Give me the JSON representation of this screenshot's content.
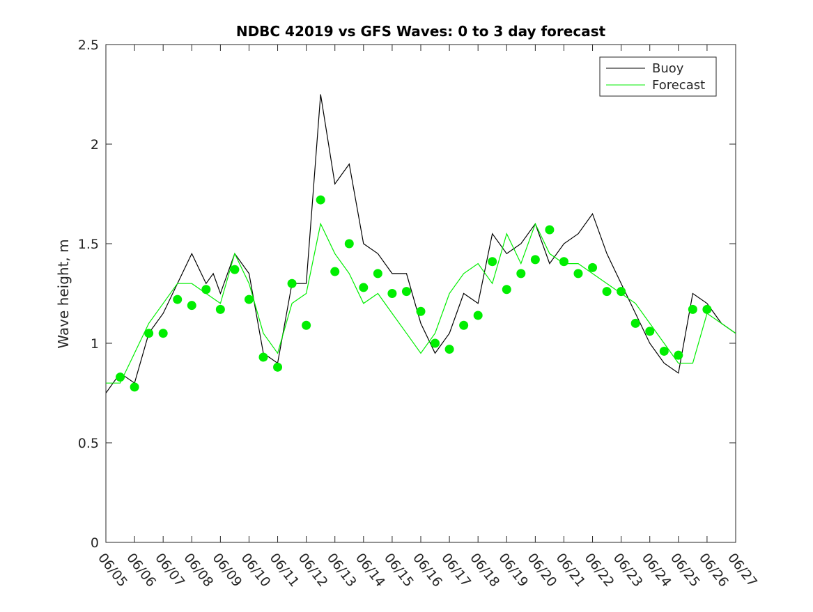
{
  "chart_data": {
    "type": "line",
    "title": "NDBC 42019 vs GFS Waves: 0 to 3 day forecast",
    "xlabel": "",
    "ylabel": "Wave height, m",
    "xlim": [
      0,
      22
    ],
    "ylim": [
      0,
      2.5
    ],
    "grid": false,
    "legend_position": "top-right",
    "x_tick_labels": [
      "06/05",
      "06/06",
      "06/07",
      "06/08",
      "06/09",
      "06/10",
      "06/11",
      "06/12",
      "06/13",
      "06/14",
      "06/15",
      "06/16",
      "06/17",
      "06/18",
      "06/19",
      "06/20",
      "06/21",
      "06/22",
      "06/23",
      "06/24",
      "06/25",
      "06/26",
      "06/27"
    ],
    "y_ticks": [
      0,
      0.5,
      1,
      1.5,
      2,
      2.5
    ],
    "y_tick_labels": [
      "0",
      "0.5",
      "1",
      "1.5",
      "2",
      "2.5"
    ],
    "colors": {
      "buoy": "#000000",
      "forecast": "#00ee00"
    },
    "series": [
      {
        "name": "Buoy",
        "x": [
          0,
          0.5,
          1,
          1.5,
          2,
          2.5,
          3,
          3.5,
          3.75,
          4,
          4.5,
          5,
          5.5,
          6,
          6.5,
          7,
          7.5,
          8,
          8.5,
          9,
          9.5,
          10,
          10.5,
          11,
          11.5,
          12,
          12.5,
          13,
          13.5,
          14,
          14.5,
          15,
          15.5,
          16,
          16.5,
          17,
          17.5,
          18,
          18.5,
          19,
          19.5,
          20,
          20.5,
          21,
          21.5,
          22
        ],
        "y": [
          0.75,
          0.85,
          0.8,
          1.05,
          1.15,
          1.3,
          1.45,
          1.3,
          1.35,
          1.25,
          1.45,
          1.35,
          0.95,
          0.9,
          1.3,
          1.3,
          2.25,
          1.8,
          1.9,
          1.5,
          1.45,
          1.35,
          1.35,
          1.1,
          0.95,
          1.05,
          1.25,
          1.2,
          1.55,
          1.45,
          1.5,
          1.6,
          1.4,
          1.5,
          1.55,
          1.65,
          1.45,
          1.3,
          1.15,
          1.0,
          0.9,
          0.85,
          1.25,
          1.2,
          1.1,
          1.05
        ]
      },
      {
        "name": "Forecast",
        "x": [
          0,
          0.5,
          1,
          1.5,
          2,
          2.5,
          3,
          3.5,
          4,
          4.5,
          5,
          5.5,
          6,
          6.5,
          7,
          7.5,
          8,
          8.5,
          9,
          9.5,
          10,
          10.5,
          11,
          11.5,
          12,
          12.5,
          13,
          13.5,
          14,
          14.5,
          15,
          15.5,
          16,
          16.5,
          17,
          17.5,
          18,
          18.5,
          19,
          19.5,
          20,
          20.5,
          21,
          21.5,
          22
        ],
        "y": [
          0.8,
          0.8,
          0.95,
          1.1,
          1.2,
          1.3,
          1.3,
          1.25,
          1.2,
          1.45,
          1.3,
          1.05,
          0.95,
          1.2,
          1.25,
          1.6,
          1.45,
          1.35,
          1.2,
          1.25,
          1.15,
          1.05,
          0.95,
          1.05,
          1.25,
          1.35,
          1.4,
          1.3,
          1.55,
          1.4,
          1.6,
          1.45,
          1.4,
          1.4,
          1.35,
          1.3,
          1.25,
          1.2,
          1.1,
          1.0,
          0.9,
          0.9,
          1.15,
          1.1,
          1.05
        ]
      }
    ],
    "markers": {
      "name": "Forecast analysis points",
      "x": [
        0.5,
        1,
        1.5,
        2,
        2.5,
        3,
        3.5,
        4,
        4.5,
        5,
        5.5,
        6,
        6.5,
        7,
        7.5,
        8,
        8.5,
        9,
        9.5,
        10,
        10.5,
        11,
        11.5,
        12,
        12.5,
        13,
        13.5,
        14,
        14.5,
        15,
        15.5,
        16,
        16.5,
        17,
        17.5,
        18,
        18.5,
        19,
        19.5,
        20,
        20.5,
        21
      ],
      "y": [
        0.83,
        0.78,
        1.05,
        1.05,
        1.22,
        1.19,
        1.27,
        1.17,
        1.37,
        1.22,
        0.93,
        0.88,
        1.3,
        1.09,
        1.72,
        1.36,
        1.5,
        1.28,
        1.35,
        1.25,
        1.26,
        1.16,
        1.0,
        0.97,
        1.09,
        1.14,
        1.41,
        1.27,
        1.35,
        1.42,
        1.57,
        1.41,
        1.35,
        1.38,
        1.26,
        1.26,
        1.1,
        1.06,
        0.96,
        0.94,
        1.17,
        1.17
      ]
    }
  },
  "legend": {
    "items": [
      {
        "label": "Buoy"
      },
      {
        "label": "Forecast"
      }
    ]
  }
}
